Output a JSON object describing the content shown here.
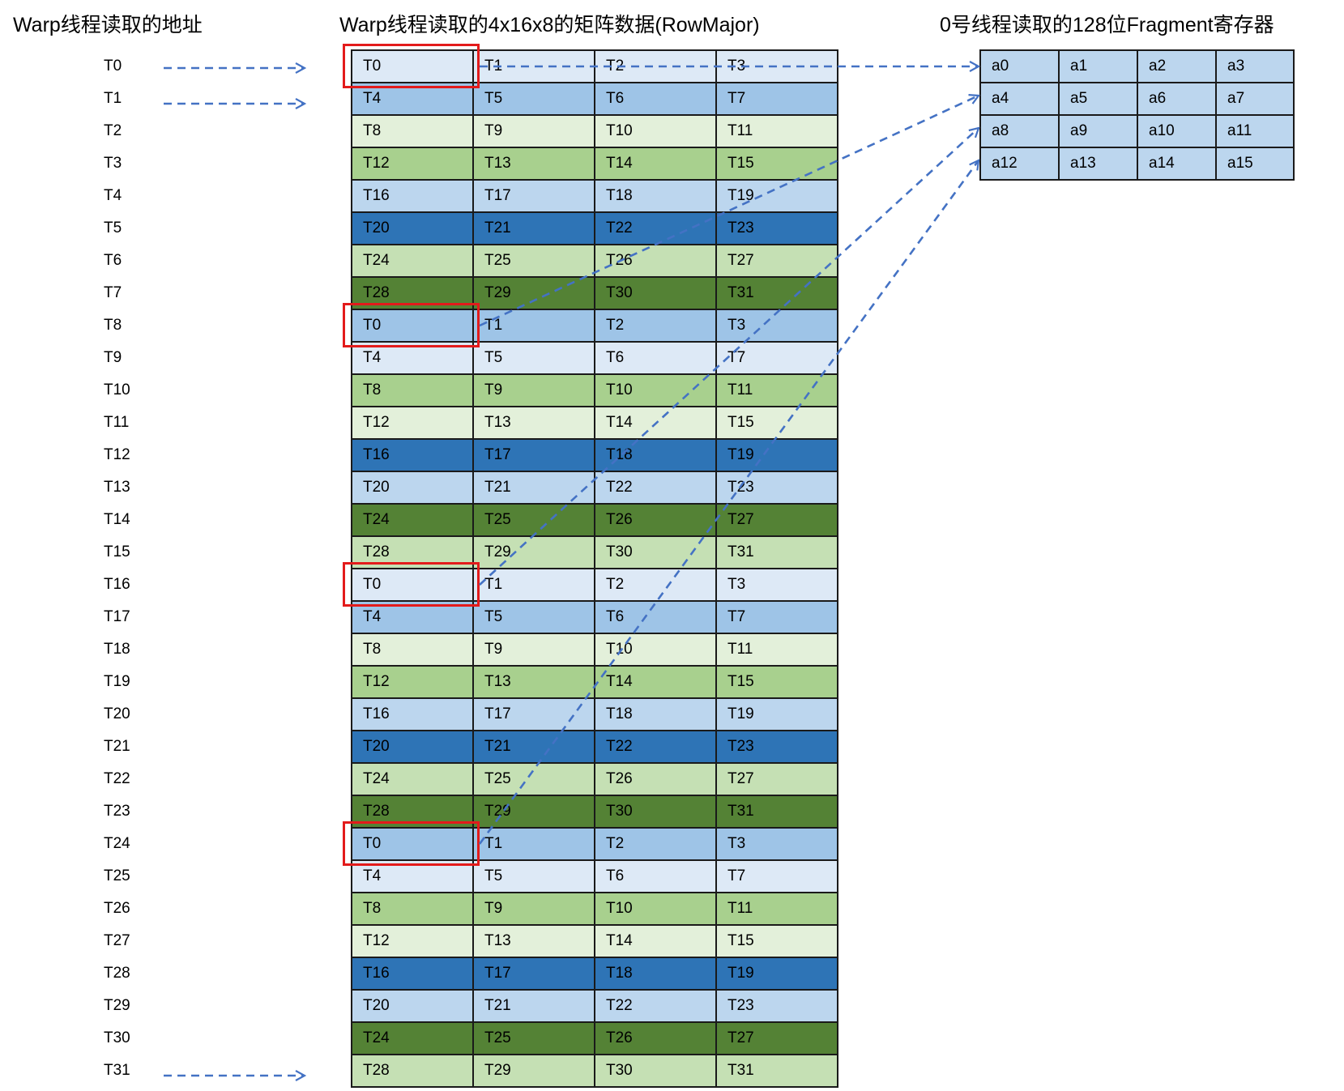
{
  "titles": {
    "left": "Warp线程读取的地址",
    "middle": "Warp线程读取的4x16x8的矩阵数据(RowMajor)",
    "right": "0号线程读取的128位Fragment寄存器"
  },
  "addresses": [
    "T0",
    "T1",
    "T2",
    "T3",
    "T4",
    "T5",
    "T6",
    "T7",
    "T8",
    "T9",
    "T10",
    "T11",
    "T12",
    "T13",
    "T14",
    "T15",
    "T16",
    "T17",
    "T18",
    "T19",
    "T20",
    "T21",
    "T22",
    "T23",
    "T24",
    "T25",
    "T26",
    "T27",
    "T28",
    "T29",
    "T30",
    "T31"
  ],
  "palette": {
    "A": "#dde9f6",
    "B": "#9ec4e7",
    "C": "#e3f0da",
    "D": "#a8d08e",
    "E": "#bcd6ee",
    "F": "#2e74b6",
    "G": "#c5e0b4",
    "H": "#548235",
    "highlight": "#e31b1b",
    "arrow": "#4472c4",
    "border": "#1a1a1a"
  },
  "matrix": {
    "rows": [
      {
        "colors": "A",
        "labels": [
          "T0",
          "T1",
          "T2",
          "T3"
        ]
      },
      {
        "colors": "B",
        "labels": [
          "T4",
          "T5",
          "T6",
          "T7"
        ]
      },
      {
        "colors": "C",
        "labels": [
          "T8",
          "T9",
          "T10",
          "T11"
        ]
      },
      {
        "colors": "D",
        "labels": [
          "T12",
          "T13",
          "T14",
          "T15"
        ]
      },
      {
        "colors": "E",
        "labels": [
          "T16",
          "T17",
          "T18",
          "T19"
        ]
      },
      {
        "colors": "F",
        "labels": [
          "T20",
          "T21",
          "T22",
          "T23"
        ]
      },
      {
        "colors": "G",
        "labels": [
          "T24",
          "T25",
          "T26",
          "T27"
        ]
      },
      {
        "colors": "H",
        "labels": [
          "T28",
          "T29",
          "T30",
          "T31"
        ]
      },
      {
        "colors": "B",
        "labels": [
          "T0",
          "T1",
          "T2",
          "T3"
        ]
      },
      {
        "colors": "A",
        "labels": [
          "T4",
          "T5",
          "T6",
          "T7"
        ]
      },
      {
        "colors": "D",
        "labels": [
          "T8",
          "T9",
          "T10",
          "T11"
        ]
      },
      {
        "colors": "C",
        "labels": [
          "T12",
          "T13",
          "T14",
          "T15"
        ]
      },
      {
        "colors": "F",
        "labels": [
          "T16",
          "T17",
          "T18",
          "T19"
        ]
      },
      {
        "colors": "E",
        "labels": [
          "T20",
          "T21",
          "T22",
          "T23"
        ]
      },
      {
        "colors": "H",
        "labels": [
          "T24",
          "T25",
          "T26",
          "T27"
        ]
      },
      {
        "colors": "G",
        "labels": [
          "T28",
          "T29",
          "T30",
          "T31"
        ]
      },
      {
        "colors": "A",
        "labels": [
          "T0",
          "T1",
          "T2",
          "T3"
        ]
      },
      {
        "colors": "B",
        "labels": [
          "T4",
          "T5",
          "T6",
          "T7"
        ]
      },
      {
        "colors": "C",
        "labels": [
          "T8",
          "T9",
          "T10",
          "T11"
        ]
      },
      {
        "colors": "D",
        "labels": [
          "T12",
          "T13",
          "T14",
          "T15"
        ]
      },
      {
        "colors": "E",
        "labels": [
          "T16",
          "T17",
          "T18",
          "T19"
        ]
      },
      {
        "colors": "F",
        "labels": [
          "T20",
          "T21",
          "T22",
          "T23"
        ]
      },
      {
        "colors": "G",
        "labels": [
          "T24",
          "T25",
          "T26",
          "T27"
        ]
      },
      {
        "colors": "H",
        "labels": [
          "T28",
          "T29",
          "T30",
          "T31"
        ]
      },
      {
        "colors": "B",
        "labels": [
          "T0",
          "T1",
          "T2",
          "T3"
        ]
      },
      {
        "colors": "A",
        "labels": [
          "T4",
          "T5",
          "T6",
          "T7"
        ]
      },
      {
        "colors": "D",
        "labels": [
          "T8",
          "T9",
          "T10",
          "T11"
        ]
      },
      {
        "colors": "C",
        "labels": [
          "T12",
          "T13",
          "T14",
          "T15"
        ]
      },
      {
        "colors": "F",
        "labels": [
          "T16",
          "T17",
          "T18",
          "T19"
        ]
      },
      {
        "colors": "E",
        "labels": [
          "T20",
          "T21",
          "T22",
          "T23"
        ]
      },
      {
        "colors": "H",
        "labels": [
          "T24",
          "T25",
          "T26",
          "T27"
        ]
      },
      {
        "colors": "G",
        "labels": [
          "T28",
          "T29",
          "T30",
          "T31"
        ]
      }
    ],
    "highlighted_rows": [
      0,
      8,
      16,
      24
    ]
  },
  "fragment": {
    "color": "#bcd6ee",
    "rows": [
      [
        "a0",
        "a1",
        "a2",
        "a3"
      ],
      [
        "a4",
        "a5",
        "a6",
        "a7"
      ],
      [
        "a8",
        "a9",
        "a10",
        "a11"
      ],
      [
        "a12",
        "a13",
        "a14",
        "a15"
      ]
    ]
  },
  "pointer_rows": [
    0,
    1,
    31
  ]
}
